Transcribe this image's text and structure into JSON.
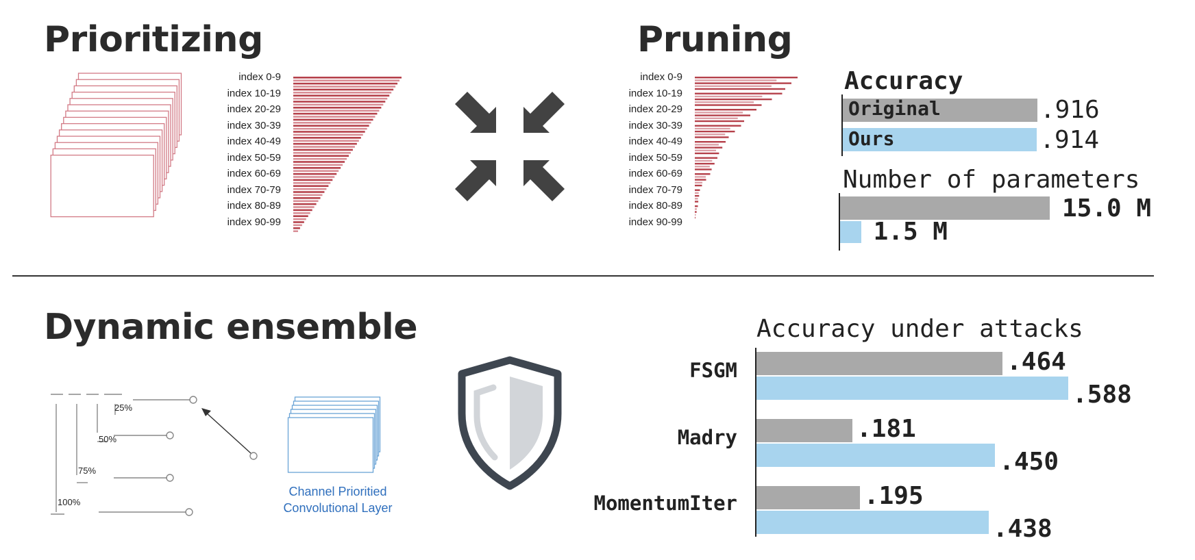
{
  "sections": {
    "prioritizing": "Prioritizing",
    "pruning": "Pruning",
    "dynamic_ensemble": "Dynamic ensemble"
  },
  "index_labels": [
    "index 0-9",
    "index 10-19",
    "index 20-29",
    "index 30-39",
    "index 40-49",
    "index 50-59",
    "index 60-69",
    "index 70-79",
    "index 80-89",
    "index 90-99"
  ],
  "pruning_bar_fractions": [
    1.0,
    0.85,
    0.6,
    0.45,
    0.3,
    0.22,
    0.15,
    0.05,
    0.03,
    0.0
  ],
  "ensemble": {
    "percent_labels": [
      "25%",
      "50%",
      "75%",
      "100%"
    ],
    "layer_caption_line1": "Channel Prioritied",
    "layer_caption_line2": "Convolutional Layer"
  },
  "icons": [
    "compress-arrows-icon",
    "shield-icon"
  ],
  "colors": {
    "original": "#a9a9a9",
    "ours": "#a8d4ee",
    "filter_red": "#b5404a"
  },
  "chart_data": [
    {
      "type": "bar",
      "title": "Accuracy",
      "categories": [
        "Original",
        "Ours"
      ],
      "values": [
        0.916,
        0.914
      ],
      "labels": [
        ".916",
        ".914"
      ]
    },
    {
      "type": "bar",
      "title": "Number of parameters",
      "categories": [
        "",
        ""
      ],
      "values": [
        15.0,
        1.5
      ],
      "labels": [
        "15.0 M",
        "1.5 M"
      ]
    },
    {
      "type": "bar",
      "title": "Accuracy under attacks",
      "categories": [
        "FSGM",
        "Madry",
        "MomentumIter"
      ],
      "series": [
        {
          "values": [
            0.464,
            0.181,
            0.195
          ],
          "labels": [
            ".464",
            ".181",
            ".195"
          ]
        },
        {
          "values": [
            0.588,
            0.45,
            0.438
          ],
          "labels": [
            ".588",
            ".450",
            ".438"
          ]
        }
      ]
    }
  ]
}
